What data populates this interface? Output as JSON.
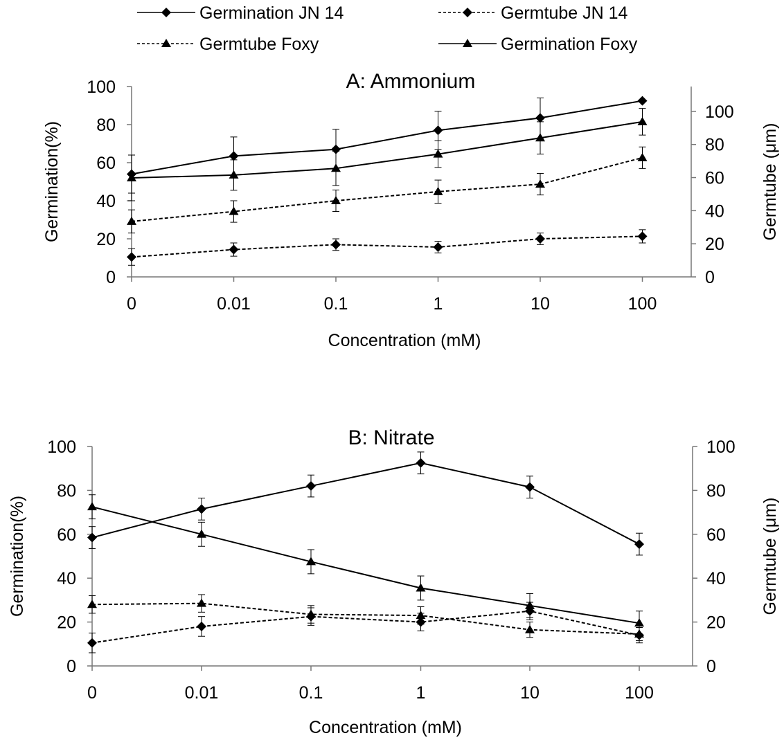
{
  "legend": [
    {
      "label": "Germination JN 14",
      "marker": "diamond",
      "dash": "solid"
    },
    {
      "label": "Germtube JN 14",
      "marker": "diamond",
      "dash": "dashed"
    },
    {
      "label": "Germtube Foxy",
      "marker": "triangle",
      "dash": "dashed"
    },
    {
      "label": "Germination Foxy",
      "marker": "triangle",
      "dash": "solid"
    }
  ],
  "chart_data": [
    {
      "type": "line",
      "title": "A: Ammonium",
      "xlabel": "Concentration  (mM)",
      "ylabel": "Germination(%)",
      "y2label": "Germtube (μm)",
      "categories": [
        "0",
        "0.01",
        "0.1",
        "1",
        "10",
        "100"
      ],
      "ylim": [
        0,
        100
      ],
      "yticks": [
        0,
        20,
        40,
        60,
        80,
        100
      ],
      "y2lim": [
        0,
        115
      ],
      "y2ticks": [
        0,
        20,
        40,
        60,
        80,
        100
      ],
      "grid": false,
      "series": [
        {
          "name": "Germination JN 14",
          "axis": "left",
          "marker": "diamond",
          "dash": "solid",
          "values": [
            54,
            63.5,
            67,
            77,
            83.5,
            92.5
          ],
          "errors": [
            10,
            10,
            10.5,
            10,
            10.5,
            0
          ]
        },
        {
          "name": "Germination Foxy",
          "axis": "left",
          "marker": "triangle",
          "dash": "solid",
          "values": [
            52,
            53.5,
            57,
            64.5,
            73,
            81.5
          ],
          "errors": [
            12,
            8,
            9,
            7,
            8.5,
            7
          ]
        },
        {
          "name": "Germtube Foxy",
          "axis": "right",
          "marker": "triangle",
          "dash": "dashed",
          "values": [
            33.5,
            39.5,
            46,
            51.5,
            56,
            72
          ],
          "errors": [
            7,
            6.5,
            6.5,
            7,
            6.5,
            6.5
          ]
        },
        {
          "name": "Germtube JN 14",
          "axis": "right",
          "marker": "diamond",
          "dash": "dashed",
          "values": [
            12,
            16.5,
            19.5,
            18,
            23,
            24.5
          ],
          "errors": [
            5,
            4,
            3.5,
            3.5,
            3.5,
            4
          ]
        }
      ]
    },
    {
      "type": "line",
      "title": "B: Nitrate",
      "xlabel": "Concentration (mM)",
      "ylabel": "Germination(%)",
      "y2label": "Germtube (μm)",
      "categories": [
        "0",
        "0.01",
        "0.1",
        "1",
        "10",
        "100"
      ],
      "ylim": [
        0,
        100
      ],
      "yticks": [
        0,
        20,
        40,
        60,
        80,
        100
      ],
      "y2lim": [
        0,
        100
      ],
      "y2ticks": [
        0,
        20,
        40,
        60,
        80,
        100
      ],
      "grid": false,
      "series": [
        {
          "name": "Germination JN 14",
          "axis": "left",
          "marker": "diamond",
          "dash": "solid",
          "values": [
            58.5,
            71.5,
            82,
            92.5,
            81.5,
            55.5
          ],
          "errors": [
            5,
            5,
            5,
            5,
            5,
            5
          ]
        },
        {
          "name": "Germination Foxy",
          "axis": "left",
          "marker": "triangle",
          "dash": "solid",
          "values": [
            72.5,
            60,
            47.5,
            35.5,
            27.5,
            19.5
          ],
          "errors": [
            5.5,
            5.5,
            5.5,
            5.5,
            5.5,
            5.5
          ]
        },
        {
          "name": "Germtube Foxy",
          "axis": "right",
          "marker": "triangle",
          "dash": "dashed",
          "values": [
            28,
            28.5,
            23.5,
            23,
            16.5,
            14.5
          ],
          "errors": [
            4,
            4,
            4,
            4,
            3.5,
            3
          ]
        },
        {
          "name": "Germtube JN 14",
          "axis": "right",
          "marker": "diamond",
          "dash": "dashed",
          "values": [
            10.5,
            18,
            22.5,
            20,
            25,
            14
          ],
          "errors": [
            4.5,
            4.5,
            4,
            4,
            4,
            3.5
          ]
        }
      ]
    }
  ]
}
